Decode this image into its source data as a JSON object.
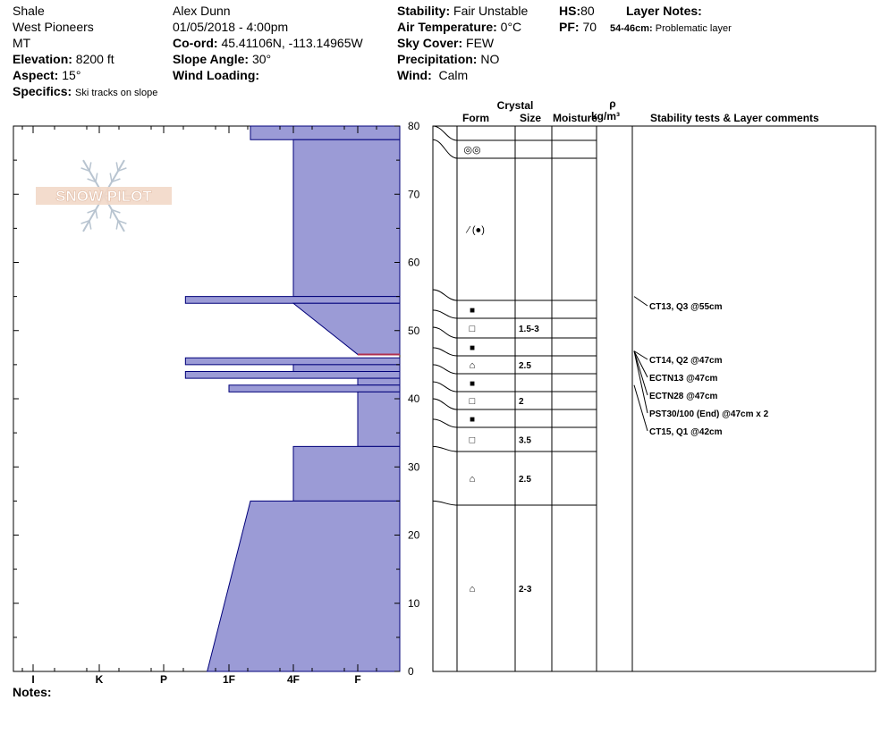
{
  "header": {
    "location": "Shale",
    "range": "West Pioneers",
    "state": "MT",
    "elevation_label": "Elevation:",
    "elevation": "8200 ft",
    "aspect_label": "Aspect:",
    "aspect": "15°",
    "specifics_label": "Specifics:",
    "specifics": "Ski tracks on slope",
    "observer": "Alex Dunn",
    "datetime": "01/05/2018 - 4:00pm",
    "coord_label": "Co-ord:",
    "coord": "45.41106N, -113.14965W",
    "slope_label": "Slope Angle:",
    "slope": "30°",
    "wind_loading_label": "Wind Loading:",
    "wind_loading": "",
    "stability_label": "Stability:",
    "stability": "Fair Unstable",
    "air_temp_label": "Air Temperature:",
    "air_temp": "0°C",
    "sky_label": "Sky Cover:",
    "sky": "FEW",
    "precip_label": "Precipitation:",
    "precip": "NO",
    "wind_label": "Wind:",
    "wind": "Calm",
    "hs_label": "HS:",
    "hs": "80",
    "pf_label": "PF:",
    "pf": "70",
    "layer_notes_label": "Layer Notes:",
    "layer_note_range": "54-46cm:",
    "layer_note_text": "Problematic layer"
  },
  "notes_label": "Notes:",
  "colors": {
    "hardness_fill": "#9b9bd6",
    "hardness_stroke": "#00007a",
    "problem_line": "#b03050"
  },
  "chart_data": {
    "type": "snow-profile",
    "depth_axis": {
      "min": 0,
      "max": 80,
      "ticks": [
        0,
        10,
        20,
        30,
        40,
        50,
        60,
        70,
        80
      ]
    },
    "hardness_axis": {
      "labels": [
        "I",
        "K",
        "P",
        "1F",
        "4F",
        "F"
      ]
    },
    "column_headers": {
      "crystal": "Crystal",
      "form": "Form",
      "size": "Size",
      "moisture": "Moisture",
      "rho": "ρ",
      "density_unit": "kg/m³",
      "comments": "Stability tests & Layer comments"
    },
    "hardness_profile": [
      {
        "depth_top": 80,
        "depth_bottom": 78,
        "hardness_top": "1F-",
        "hardness_bottom": "1F-"
      },
      {
        "depth_top": 78,
        "depth_bottom": 55,
        "hardness_top": "4F",
        "hardness_bottom": "4F"
      },
      {
        "depth_top": 55,
        "depth_bottom": 54,
        "hardness_top": "P-",
        "hardness_bottom": "P-"
      },
      {
        "depth_top": 54,
        "depth_bottom": 46.5,
        "hardness_top": "4F",
        "hardness_bottom": "F"
      },
      {
        "depth_top": 46,
        "depth_bottom": 45,
        "hardness_top": "P-",
        "hardness_bottom": "P-"
      },
      {
        "depth_top": 45,
        "depth_bottom": 44,
        "hardness_top": "4F",
        "hardness_bottom": "4F"
      },
      {
        "depth_top": 44,
        "depth_bottom": 43,
        "hardness_top": "P-",
        "hardness_bottom": "P-"
      },
      {
        "depth_top": 43,
        "depth_bottom": 42,
        "hardness_top": "F",
        "hardness_bottom": "F"
      },
      {
        "depth_top": 42,
        "depth_bottom": 41,
        "hardness_top": "1F",
        "hardness_bottom": "1F"
      },
      {
        "depth_top": 41,
        "depth_bottom": 33,
        "hardness_top": "F",
        "hardness_bottom": "F"
      },
      {
        "depth_top": 33,
        "depth_bottom": 25,
        "hardness_top": "4F",
        "hardness_bottom": "4F"
      },
      {
        "depth_top": 25,
        "depth_bottom": 0,
        "hardness_top": "1F-",
        "hardness_bottom": "1F+"
      }
    ],
    "layers": [
      {
        "top": 80,
        "bottom": 78,
        "form_icon": "graupel-icon",
        "form": "◎◎",
        "size": ""
      },
      {
        "top": 78,
        "bottom": 56,
        "form_icon": "decomposing-fragments-icon",
        "form": "⁄ (●)",
        "size": ""
      },
      {
        "top": 56,
        "bottom": 53,
        "form_icon": "rounded-faceted-icon",
        "form": "■",
        "size": ""
      },
      {
        "top": 53,
        "bottom": 50.5,
        "form_icon": "faceted-icon",
        "form": "□",
        "size": "1.5-3"
      },
      {
        "top": 50.5,
        "bottom": 47.5,
        "form_icon": "rounded-faceted-icon",
        "form": "■",
        "size": ""
      },
      {
        "top": 47.5,
        "bottom": 45,
        "form_icon": "hollow-cup-icon",
        "form": "⌂",
        "size": "2.5"
      },
      {
        "top": 45,
        "bottom": 42.5,
        "form_icon": "rounded-faceted-icon",
        "form": "■",
        "size": ""
      },
      {
        "top": 42.5,
        "bottom": 40,
        "form_icon": "faceted-icon",
        "form": "□",
        "size": "2"
      },
      {
        "top": 40,
        "bottom": 37,
        "form_icon": "rounded-faceted-icon",
        "form": "■",
        "size": ""
      },
      {
        "top": 37,
        "bottom": 33,
        "form_icon": "faceted-icon",
        "form": "□",
        "size": "3.5"
      },
      {
        "top": 33,
        "bottom": 25,
        "form_icon": "hollow-cup-icon",
        "form": "⌂",
        "size": "2.5"
      },
      {
        "top": 25,
        "bottom": 0,
        "form_icon": "hollow-cup-icon",
        "form": "⌂",
        "size": "2-3"
      }
    ],
    "stability_tests": [
      {
        "text": "CT13, Q3 @55cm",
        "depth": 55
      },
      {
        "text": "CT14, Q2 @47cm",
        "depth": 47
      },
      {
        "text": "ECTN13 @47cm",
        "depth": 47
      },
      {
        "text": "ECTN28 @47cm",
        "depth": 47
      },
      {
        "text": "PST30/100 (End) @47cm  x 2",
        "depth": 47
      },
      {
        "text": "CT15, Q1 @42cm",
        "depth": 42
      }
    ],
    "problem_layer": {
      "depth": 46.5
    }
  },
  "logo": {
    "text": "SNOW PILOT",
    "icon": "snowflake-icon"
  }
}
